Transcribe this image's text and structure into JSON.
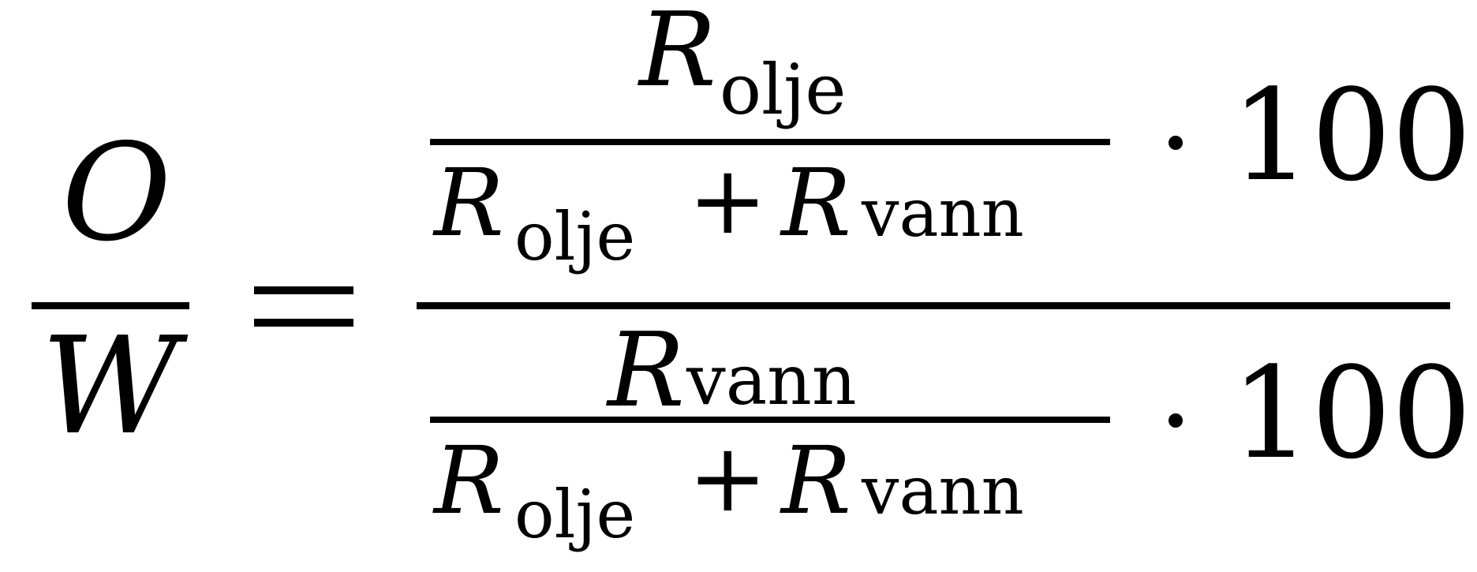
{
  "formula": {
    "lhs": {
      "numerator": "O",
      "denominator": "W"
    },
    "relation": "=",
    "rhs": {
      "top": {
        "numerator": {
          "symbol": "R",
          "subscript": "olje"
        },
        "denominator": {
          "term1": {
            "symbol": "R",
            "subscript": "olje"
          },
          "operator": "+",
          "term2": {
            "symbol": "R",
            "subscript": "vann"
          }
        },
        "multiplier": "100"
      },
      "bottom": {
        "numerator": {
          "symbol": "R",
          "subscript": "vann"
        },
        "denominator": {
          "term1": {
            "symbol": "R",
            "subscript": "olje"
          },
          "operator": "+",
          "term2": {
            "symbol": "R",
            "subscript": "vann"
          }
        },
        "multiplier": "100"
      }
    }
  }
}
